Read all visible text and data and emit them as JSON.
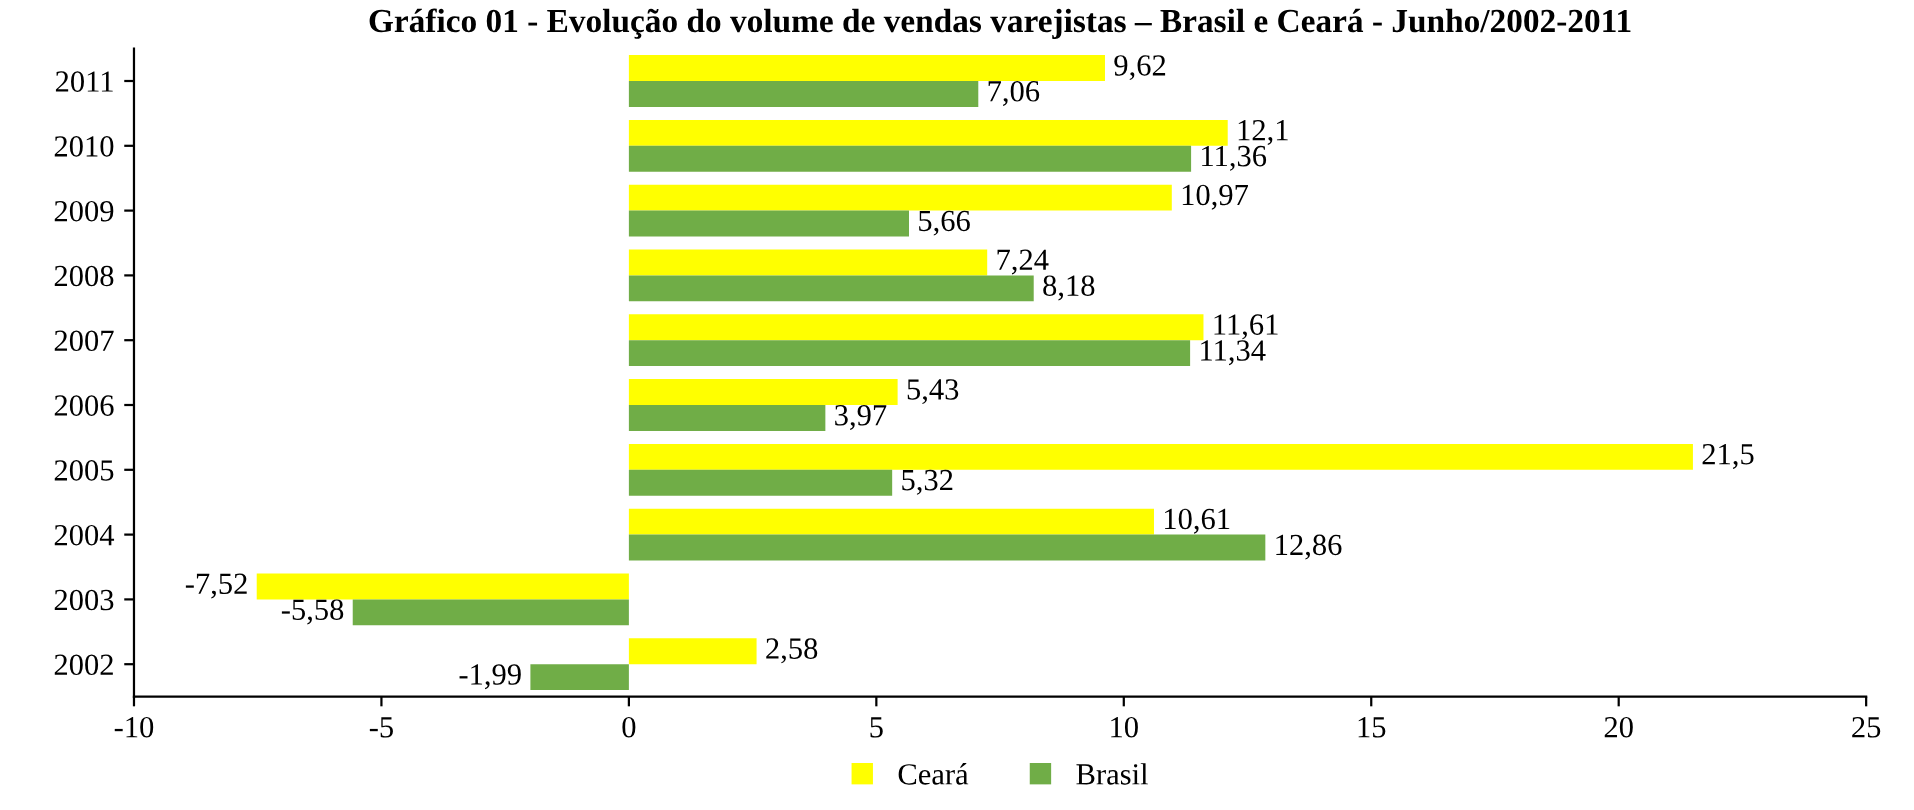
{
  "chart_data": {
    "type": "bar",
    "orientation": "horizontal",
    "title": "Gráfico 01 - Evolução do volume de vendas varejistas – Brasil e Ceará - Junho/2002-2011",
    "categories": [
      "2011",
      "2010",
      "2009",
      "2008",
      "2007",
      "2006",
      "2005",
      "2004",
      "2003",
      "2002"
    ],
    "series": [
      {
        "name": "Ceará",
        "color": "#ffff00",
        "values": [
          9.62,
          12.1,
          10.97,
          7.24,
          11.61,
          5.43,
          21.5,
          10.61,
          -7.52,
          2.58
        ],
        "value_labels": [
          "9,62",
          "12,1",
          "10,97",
          "7,24",
          "11,61",
          "5,43",
          "21,5",
          "10,61",
          "-7,52",
          "2,58"
        ]
      },
      {
        "name": "Brasil",
        "color": "#70ad47",
        "values": [
          7.06,
          11.36,
          5.66,
          8.18,
          11.34,
          3.97,
          5.32,
          12.86,
          -5.58,
          -1.99
        ],
        "value_labels": [
          "7,06",
          "11,36",
          "5,66",
          "8,18",
          "11,34",
          "3,97",
          "5,32",
          "12,86",
          "-5,58",
          "-1,99"
        ]
      }
    ],
    "xlim": [
      -10,
      25
    ],
    "xticks": [
      -10,
      -5,
      0,
      5,
      10,
      15,
      20,
      25
    ],
    "grid": false,
    "legend": "bottom"
  }
}
